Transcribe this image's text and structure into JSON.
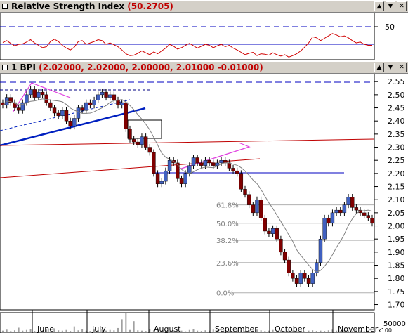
{
  "rsi_panel": {
    "title": "Relative Strength Index",
    "value": "(50.2705)",
    "level_label": "50"
  },
  "price_panel": {
    "title": "1 BPI",
    "ohlc": "(2.02000, 2.02000, 2.00000, 2.01000 -0.01000)"
  },
  "volume_panel": {
    "scale_label": "50000",
    "multiplier": "x100"
  },
  "window_buttons": [
    "▲",
    "▼",
    "✕"
  ],
  "colors": {
    "rsi_line": "#d00000",
    "bull_candle": "#4060c0",
    "bear_candle": "#800000",
    "trend_blue": "#0020c0",
    "trend_red": "#c00000",
    "triangle": "#e040e0",
    "moving_avg": "#808080"
  },
  "chart_data": {
    "type": "candlestick",
    "x_labels": [
      "June",
      "July",
      "August",
      "September",
      "October",
      "November"
    ],
    "y_ticks": [
      2.55,
      2.5,
      2.45,
      2.4,
      2.35,
      2.3,
      2.25,
      2.2,
      2.15,
      2.1,
      2.05,
      2.0,
      1.95,
      1.9,
      1.85,
      1.8,
      1.75,
      1.7
    ],
    "ylim": [
      1.68,
      2.58
    ],
    "fibonacci": [
      {
        "label": "61.8%",
        "value": 2.08
      },
      {
        "label": "50.0%",
        "value": 2.01
      },
      {
        "label": "38.2%",
        "value": 1.945
      },
      {
        "label": "23.6%",
        "value": 1.86
      },
      {
        "label": "0.0%",
        "value": 1.745
      }
    ],
    "close": [
      2.46,
      2.49,
      2.47,
      2.45,
      2.44,
      2.47,
      2.5,
      2.52,
      2.49,
      2.51,
      2.5,
      2.47,
      2.45,
      2.43,
      2.42,
      2.44,
      2.4,
      2.38,
      2.41,
      2.45,
      2.44,
      2.47,
      2.46,
      2.48,
      2.5,
      2.51,
      2.49,
      2.5,
      2.48,
      2.46,
      2.47,
      2.37,
      2.33,
      2.32,
      2.31,
      2.34,
      2.3,
      2.28,
      2.2,
      2.16,
      2.17,
      2.21,
      2.25,
      2.24,
      2.18,
      2.16,
      2.2,
      2.23,
      2.26,
      2.24,
      2.23,
      2.25,
      2.24,
      2.23,
      2.24,
      2.25,
      2.24,
      2.22,
      2.21,
      2.2,
      2.14,
      2.12,
      2.08,
      2.05,
      2.1,
      2.03,
      1.98,
      1.97,
      1.99,
      1.95,
      1.9,
      1.87,
      1.82,
      1.8,
      1.78,
      1.82,
      1.8,
      1.78,
      1.82,
      1.86,
      1.95,
      2.03,
      2.01,
      2.05,
      2.06,
      2.05,
      2.08,
      2.11,
      2.07,
      2.06,
      2.05,
      2.04,
      2.03,
      2.01
    ],
    "rsi": [
      56,
      60,
      54,
      49,
      52,
      53,
      57,
      62,
      55,
      50,
      45,
      47,
      58,
      63,
      58,
      50,
      44,
      40,
      46,
      58,
      60,
      52,
      55,
      58,
      62,
      60,
      52,
      55,
      51,
      47,
      40,
      32,
      28,
      29,
      33,
      38,
      34,
      30,
      36,
      32,
      38,
      44,
      52,
      48,
      42,
      45,
      50,
      54,
      49,
      44,
      48,
      52,
      50,
      45,
      49,
      52,
      47,
      50,
      44,
      40,
      35,
      30,
      33,
      35,
      28,
      32,
      31,
      29,
      34,
      30,
      27,
      30,
      25,
      28,
      32,
      38,
      46,
      55,
      68,
      66,
      60,
      65,
      70,
      75,
      72,
      68,
      70,
      66,
      60,
      55,
      57,
      52,
      50,
      50
    ],
    "volume": [
      5,
      8,
      4,
      6,
      14,
      5,
      7,
      9,
      4,
      6,
      5,
      8,
      3,
      12,
      6,
      5,
      7,
      4,
      18,
      6,
      9,
      5,
      4,
      8,
      6,
      10,
      5,
      7,
      6,
      13,
      40,
      58,
      7,
      34,
      6,
      5,
      4,
      9,
      6,
      12,
      5,
      7,
      4,
      6,
      8,
      5,
      3,
      7,
      9,
      5,
      4,
      6,
      5,
      8,
      7,
      4,
      6,
      5,
      3,
      7,
      5,
      4,
      6,
      5,
      8,
      6,
      4,
      5,
      7,
      5,
      6,
      4,
      5,
      5,
      4,
      4,
      3,
      5,
      6,
      4,
      5,
      4,
      6,
      8,
      5,
      4,
      6,
      5,
      4,
      6,
      5,
      4,
      5,
      4
    ]
  }
}
